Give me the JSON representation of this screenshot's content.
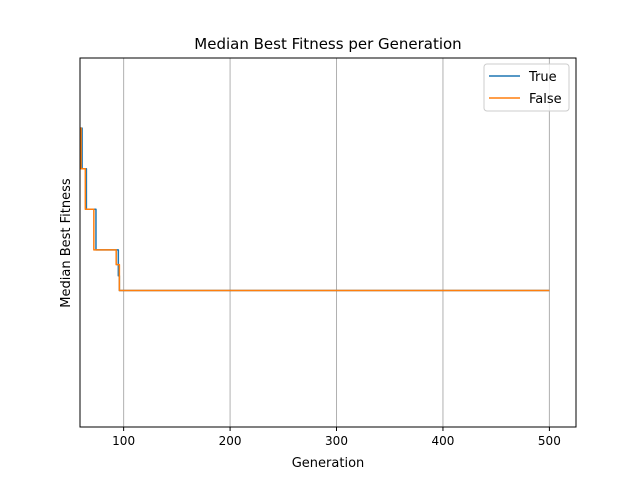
{
  "chart_data": {
    "type": "line",
    "title": "Median Best Fitness per Generation",
    "xlabel": "Generation",
    "ylabel": "Median Best Fitness",
    "xlim": [
      59,
      525
    ],
    "ylim": [
      0,
      1
    ],
    "x_ticks": [
      100,
      200,
      300,
      400,
      500
    ],
    "y_ticks": [],
    "grid": "x",
    "legend": "top-right",
    "series": [
      {
        "name": "True",
        "color": "#1f77b4",
        "points": [
          [
            59,
            0.81
          ],
          [
            61,
            0.81
          ],
          [
            61,
            0.7
          ],
          [
            65,
            0.7
          ],
          [
            65,
            0.59
          ],
          [
            74,
            0.59
          ],
          [
            74,
            0.48
          ],
          [
            95,
            0.48
          ],
          [
            95,
            0.41
          ],
          [
            96,
            0.41
          ],
          [
            96,
            0.37
          ],
          [
            500,
            0.37
          ]
        ]
      },
      {
        "name": "False",
        "color": "#ff7f0e",
        "points": [
          [
            59,
            0.81
          ],
          [
            60,
            0.81
          ],
          [
            60,
            0.7
          ],
          [
            64,
            0.7
          ],
          [
            64,
            0.59
          ],
          [
            72,
            0.59
          ],
          [
            72,
            0.48
          ],
          [
            93,
            0.48
          ],
          [
            93,
            0.44
          ],
          [
            96,
            0.44
          ],
          [
            96,
            0.37
          ],
          [
            500,
            0.37
          ]
        ]
      }
    ]
  }
}
